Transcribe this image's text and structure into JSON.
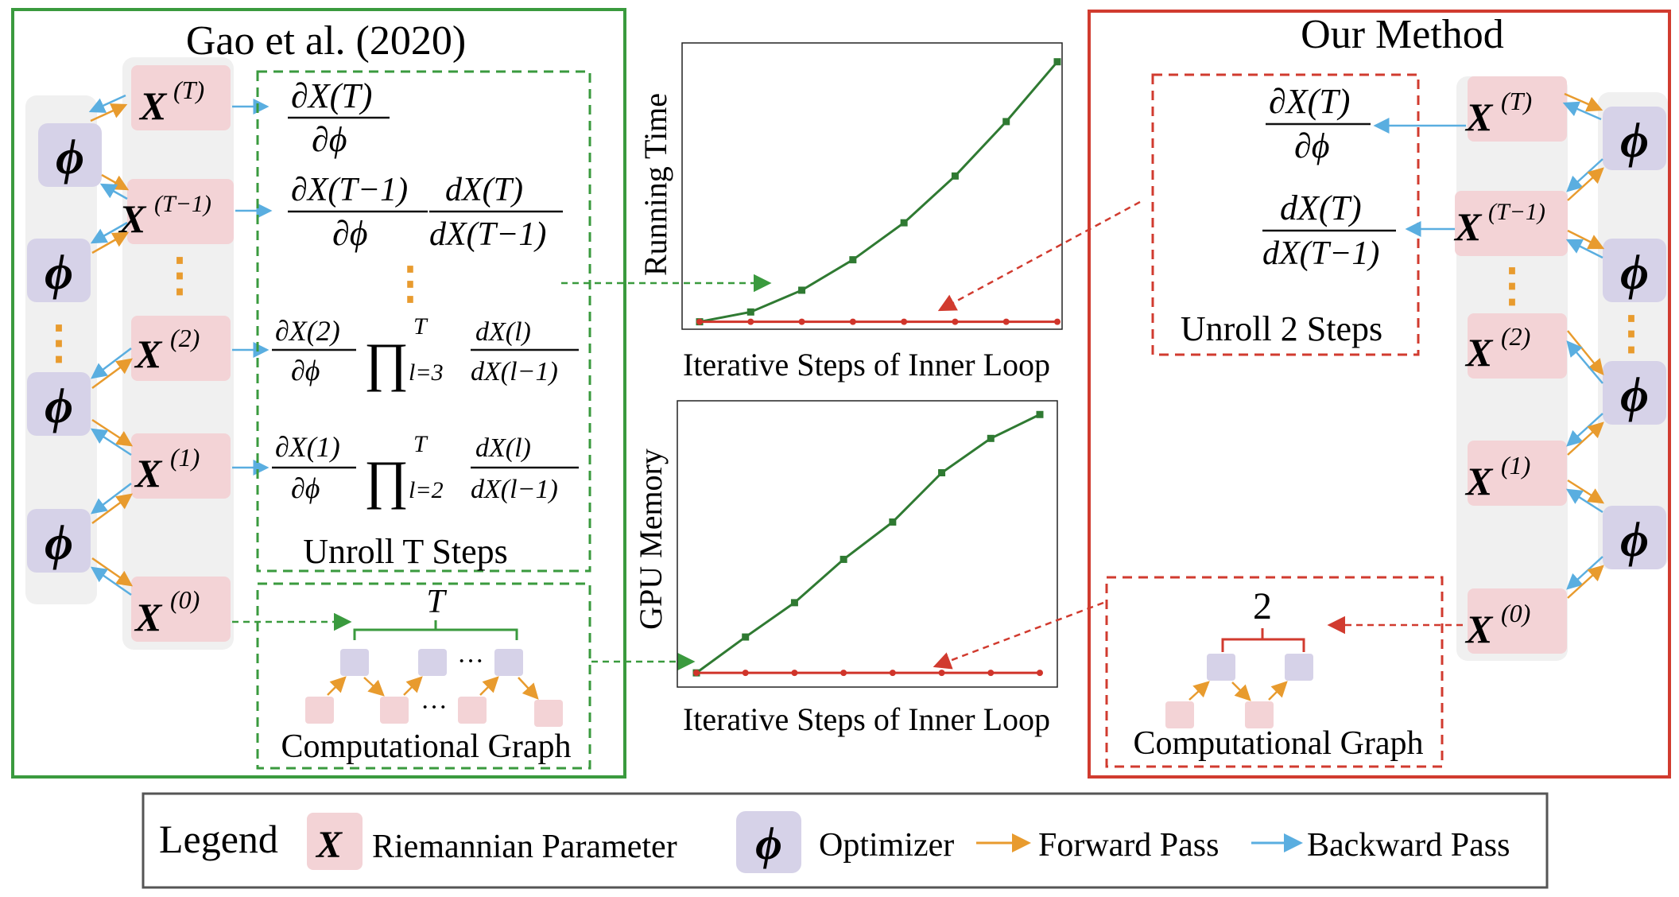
{
  "panels": {
    "left_title": "Gao et al.  (2020)",
    "right_title": "Our Method"
  },
  "params": {
    "x_T": "(T)",
    "x_T1": "(T−1)",
    "x_2": "(2)",
    "x_1": "(1)",
    "x_0": "(0)",
    "x_symbol": "X",
    "phi_symbol": "ϕ",
    "dots": "⋮"
  },
  "formulas": {
    "f1_num": "∂X(T)",
    "f1_den": "∂ϕ",
    "f2_num": "∂X(T−1)",
    "f2_den": "∂ϕ",
    "f2b_num": "dX(T)",
    "f2b_den": "dX(T−1)",
    "f3_num": "∂X(2)",
    "f3_den": "∂ϕ",
    "f3_prod": "∏",
    "f3_lim": "l=3",
    "f3_top": "T",
    "f3b_num": "dX(l)",
    "f3b_den": "dX(l−1)",
    "f4_num": "∂X(1)",
    "f4_den": "∂ϕ",
    "f4_prod": "∏",
    "f4_lim": "l=2",
    "f4_top": "T",
    "f4b_num": "dX(l)",
    "f4b_den": "dX(l−1)"
  },
  "labels": {
    "unroll_t": "Unroll T Steps",
    "unroll_2": "Unroll 2 Steps",
    "comp_graph_left": "Computational Graph",
    "comp_graph_right": "Computational Graph",
    "brace_T": "T",
    "brace_2": "2",
    "ellipsis": "···"
  },
  "legend": {
    "title": "Legend",
    "param_label": "Riemannian Parameter",
    "optimizer_label": "Optimizer",
    "forward_label": "Forward Pass",
    "backward_label": "Backward Pass"
  },
  "colors": {
    "green_frame": "#3a9a3e",
    "red_frame": "#d13b2f",
    "param_fill": "#f3d3d6",
    "phi_fill": "#d6d2e8",
    "forward_arrow": "#e89b2e",
    "backward_arrow": "#5aaee0",
    "line_green": "#2f7a32",
    "line_red": "#d0342a",
    "column_bg": "#f0f0f0"
  },
  "chart_data": [
    {
      "type": "line",
      "xlabel": "Iterative Steps of Inner Loop",
      "ylabel": "Running Time",
      "x": [
        1,
        2,
        3,
        4,
        5,
        6,
        7,
        8
      ],
      "series": [
        {
          "values": [
            1,
            10,
            30,
            58,
            92,
            135,
            185,
            240
          ]
        },
        {
          "values": [
            1,
            1,
            1,
            1,
            1,
            1,
            1,
            1
          ]
        }
      ]
    },
    {
      "type": "line",
      "xlabel": "Iterative Steps of Inner Loop",
      "ylabel": "GPU Memory",
      "x": [
        1,
        2,
        3,
        4,
        5,
        6,
        7,
        8
      ],
      "series": [
        {
          "values": [
            1,
            25,
            48,
            77,
            102,
            135,
            158,
            174
          ]
        },
        {
          "values": [
            1,
            1,
            1,
            1,
            1,
            1,
            1,
            1
          ]
        }
      ]
    }
  ]
}
